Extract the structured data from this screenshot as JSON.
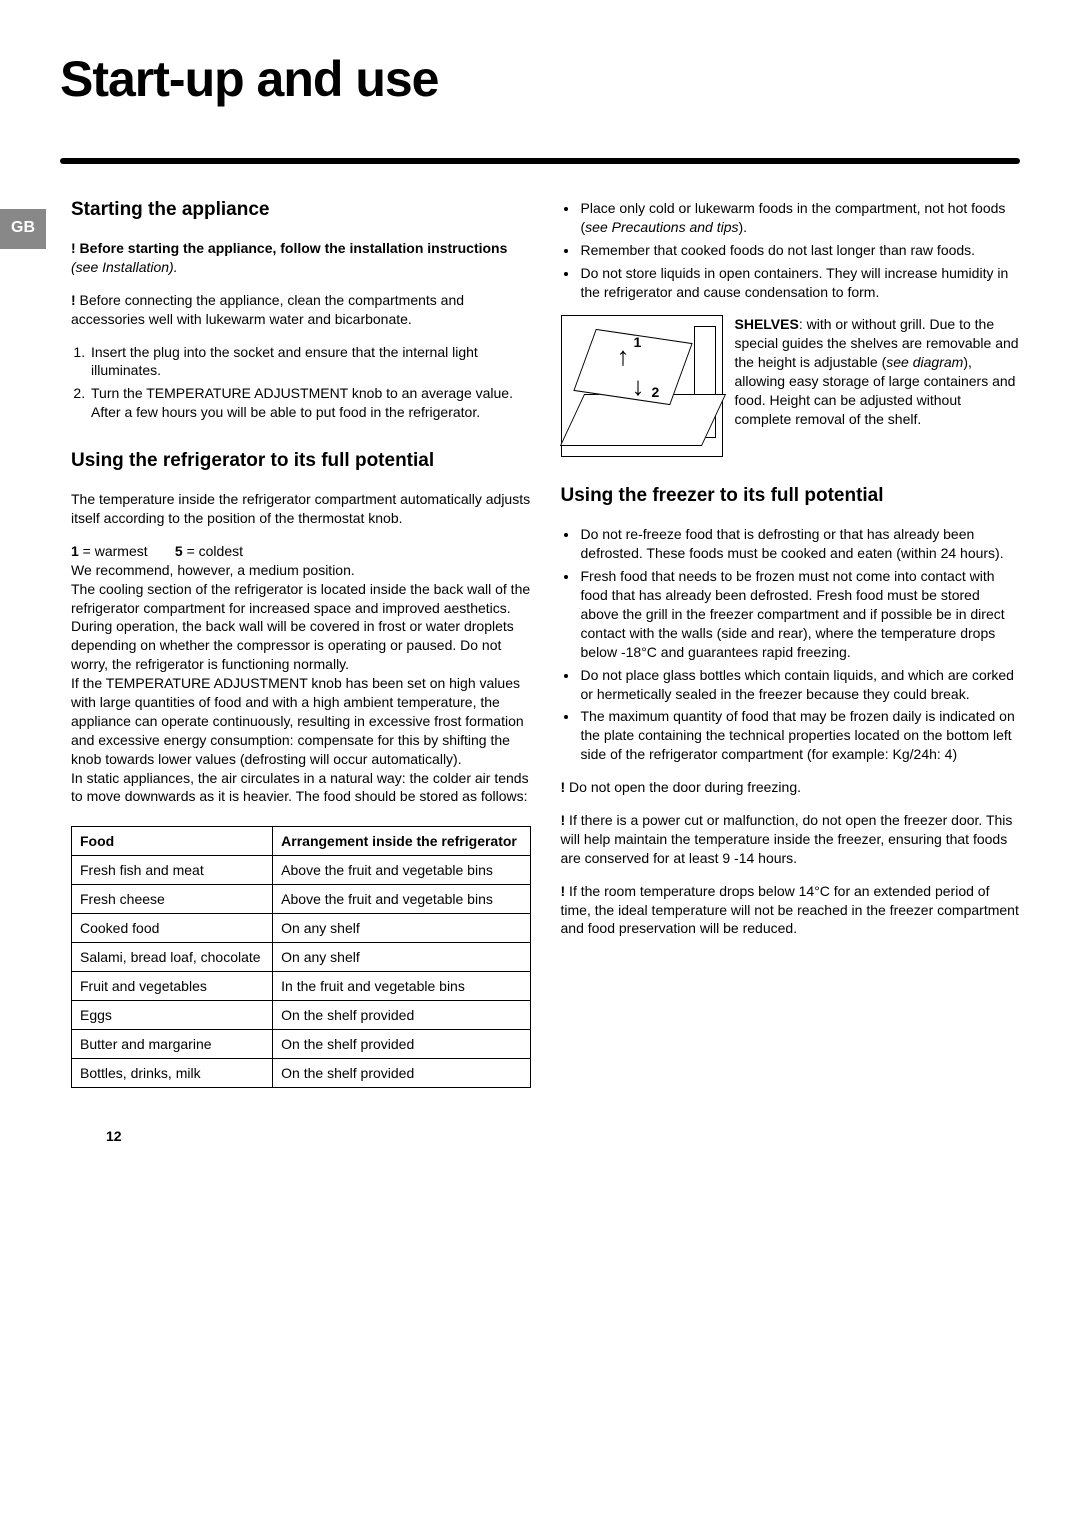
{
  "typography": {
    "h1_fontsize": 50,
    "h2_fontsize": 19,
    "body_fontsize": 14,
    "font_family": "Arial, Helvetica, sans-serif"
  },
  "colors": {
    "text": "#000000",
    "background": "#ffffff",
    "tab_bg": "#888888",
    "tab_text": "#ffffff",
    "divider": "#000000",
    "table_border": "#000000"
  },
  "tab": "GB",
  "title": "Start-up and use",
  "left": {
    "h_start": "Starting the appliance",
    "p_start_1a": "! Before starting the appliance, follow the installation instructions",
    "p_start_1b": " (see Installation).",
    "p_start_2a": "!",
    "p_start_2b": " Before connecting the appliance, clean the compartments and accessories well with lukewarm water and bicarbonate.",
    "ol_start": [
      "Insert the plug into the socket and ensure that the internal light illuminates.",
      "Turn the TEMPERATURE ADJUSTMENT knob to an average value. After a few hours you will be able to put food in the refrigerator."
    ],
    "h_fridge": "Using the refrigerator to its full potential",
    "p_fridge_1": "The temperature inside the refrigerator compartment automatically adjusts itself according to the position of the thermostat knob.",
    "p_temp_a": "1",
    "p_temp_b": " = warmest ",
    "p_temp_c": "5",
    "p_temp_d": " = coldest",
    "p_fridge_2": "We recommend, however, a medium position.",
    "p_fridge_3": "The cooling section of the refrigerator is located inside the back wall of the refrigerator compartment for increased space and improved aesthetics. During operation, the back wall will be covered in frost or water droplets depending on whether the compressor is operating or paused. Do not worry, the refrigerator is functioning normally.",
    "p_fridge_4": "If the TEMPERATURE ADJUSTMENT knob has been set on high values with large quantities of food and with a high ambient temperature, the appliance can operate continuously, resulting in excessive frost formation and excessive energy consumption: compensate for this by shifting the knob towards lower values (defrosting will occur automatically).",
    "p_fridge_5": "In static appliances, the air circulates in a natural way: the colder air tends to move downwards as it is heavier. The food should be stored as follows:",
    "table": {
      "header": [
        "Food",
        "Arrangement inside the refrigerator"
      ],
      "rows": [
        [
          "Fresh fish and meat",
          "Above the fruit and vegetable bins"
        ],
        [
          "Fresh cheese",
          "Above the fruit and vegetable bins"
        ],
        [
          "Cooked food",
          "On any shelf"
        ],
        [
          "Salami, bread loaf, chocolate",
          "On any shelf"
        ],
        [
          "Fruit and vegetables",
          "In the fruit and vegetable bins"
        ],
        [
          "Eggs",
          "On the shelf provided"
        ],
        [
          "Butter and margarine",
          "On the shelf provided"
        ],
        [
          "Bottles, drinks, milk",
          "On the shelf provided"
        ]
      ]
    }
  },
  "right": {
    "ul_top": [
      "Place only cold or lukewarm foods in the compartment, not hot foods (see Precautions and tips).",
      "Remember that cooked foods do not last longer than raw foods.",
      "Do not store liquids in open containers. They will increase humidity in the refrigerator and cause condensation to form."
    ],
    "diagram": {
      "label1": "1",
      "label2": "2",
      "arrow_up": "↑",
      "arrow_down": "↓"
    },
    "shelves_bold": "SHELVES",
    "shelves_text_a": ": with or without grill. Due to the special guides the shelves are removable and the height is adjustable (",
    "shelves_text_b": "see diagram",
    "shelves_text_c": "), allowing easy storage of large containers and food. Height can be adjusted without complete removal of the shelf.",
    "h_freezer": "Using the freezer to its full potential",
    "ul_freezer": [
      "Do not re-freeze food that is defrosting or that has already been defrosted. These foods must be cooked and eaten (within 24 hours).",
      "Fresh food that needs to be frozen must not come into contact with food that has already been defrosted. Fresh food must be stored above the grill in the freezer compartment and if possible be in direct contact with the walls (side and rear), where the temperature drops below -18°C and guarantees rapid freezing.",
      "Do not place glass bottles which contain liquids, and which are corked or hermetically sealed in the freezer because they could break.",
      "The maximum quantity of food that may be frozen daily is indicated on the plate containing the technical properties located on the bottom left side of the refrigerator compartment (for example: Kg/24h: 4)"
    ],
    "p_warn_1a": "!",
    "p_warn_1b": " Do not open the door during freezing.",
    "p_warn_2a": "!",
    "p_warn_2b": " If there is a power cut or malfunction, do not open the freezer door. This will help maintain the temperature inside the freezer, ensuring that foods are conserved for at least 9 -14 hours.",
    "p_warn_3a": "!",
    "p_warn_3b": " If the room temperature drops below 14°C for an extended period of time, the ideal temperature will not be reached in the freezer compartment and food preservation will be reduced."
  },
  "page_number": "12"
}
